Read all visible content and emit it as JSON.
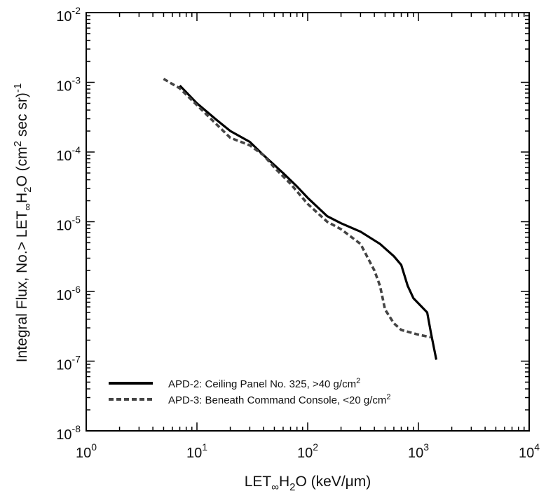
{
  "chart_data": {
    "type": "line",
    "xlabel": {
      "base": "LET",
      "sub1": "∞",
      "mid": "H",
      "sub2": "2",
      "tail": "O (keV/μm)"
    },
    "ylabel": {
      "prefix": "Integral Flux, No.> LET",
      "sub1": "∞",
      "mid": "H",
      "sub2": "2",
      "tail": "O  (cm",
      "sup1": "2",
      "tail2": " sec sr)",
      "sup2": "-1"
    },
    "x_scale": "log",
    "y_scale": "log",
    "xlim": [
      1,
      10000
    ],
    "ylim": [
      1e-08,
      0.01
    ],
    "x_ticks": [
      {
        "value": 1,
        "base": "10",
        "exp": "0"
      },
      {
        "value": 10,
        "base": "10",
        "exp": "1"
      },
      {
        "value": 100,
        "base": "10",
        "exp": "2"
      },
      {
        "value": 1000,
        "base": "10",
        "exp": "3"
      },
      {
        "value": 10000,
        "base": "10",
        "exp": "4"
      }
    ],
    "y_ticks": [
      {
        "value": 1e-08,
        "base": "10",
        "exp": "-8"
      },
      {
        "value": 1e-07,
        "base": "10",
        "exp": "-7"
      },
      {
        "value": 1e-06,
        "base": "10",
        "exp": "-6"
      },
      {
        "value": 1e-05,
        "base": "10",
        "exp": "-5"
      },
      {
        "value": 0.0001,
        "base": "10",
        "exp": "-4"
      },
      {
        "value": 0.001,
        "base": "10",
        "exp": "-3"
      },
      {
        "value": 0.01,
        "base": "10",
        "exp": "-2"
      }
    ],
    "grid": false,
    "legend_position": "bottom-left",
    "series": [
      {
        "name": "APD-2: Ceiling Panel No. 325, >40 g/cm",
        "name_sup": "2",
        "style": "solid",
        "color": "#000000",
        "points": [
          [
            7.0,
            0.0009
          ],
          [
            10,
            0.0005
          ],
          [
            15,
            0.00029
          ],
          [
            20,
            0.0002
          ],
          [
            30,
            0.00014
          ],
          [
            40,
            9e-05
          ],
          [
            60,
            5e-05
          ],
          [
            80,
            3.2e-05
          ],
          [
            100,
            2.2e-05
          ],
          [
            150,
            1.2e-05
          ],
          [
            200,
            9.5e-06
          ],
          [
            300,
            7.2e-06
          ],
          [
            450,
            4.8e-06
          ],
          [
            600,
            3.2e-06
          ],
          [
            700,
            2.4e-06
          ],
          [
            800,
            1.2e-06
          ],
          [
            900,
            8e-07
          ],
          [
            1200,
            5e-07
          ],
          [
            1300,
            2.5e-07
          ],
          [
            1450,
            1.05e-07
          ]
        ]
      },
      {
        "name": "APD-3: Beneath Command Console, <20 g/cm",
        "name_sup": "2",
        "style": "dashed",
        "color": "#444444",
        "points": [
          [
            5.0,
            0.00112
          ],
          [
            7.0,
            0.00082
          ],
          [
            10,
            0.00047
          ],
          [
            15,
            0.00025
          ],
          [
            20,
            0.00016
          ],
          [
            30,
            0.000125
          ],
          [
            40,
            9e-05
          ],
          [
            50,
            6e-05
          ],
          [
            70,
            3.5e-05
          ],
          [
            100,
            1.8e-05
          ],
          [
            150,
            1e-05
          ],
          [
            200,
            7.8e-06
          ],
          [
            300,
            4.8e-06
          ],
          [
            400,
            2e-06
          ],
          [
            450,
            1.2e-06
          ],
          [
            500,
            5.5e-07
          ],
          [
            600,
            3.5e-07
          ],
          [
            700,
            2.8e-07
          ],
          [
            1000,
            2.4e-07
          ],
          [
            1300,
            2.2e-07
          ]
        ]
      }
    ]
  }
}
